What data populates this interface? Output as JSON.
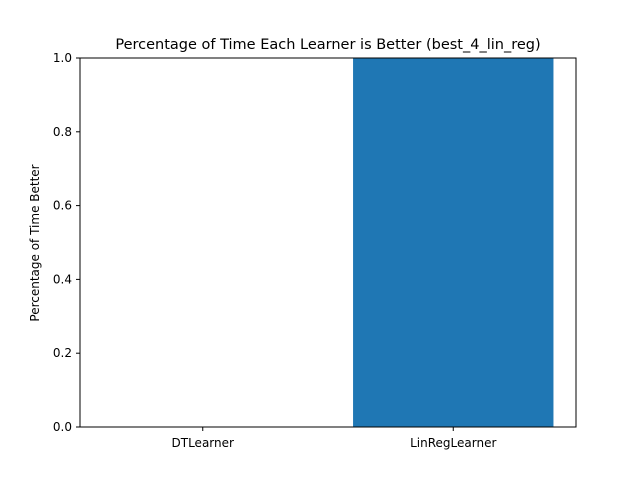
{
  "chart_data": {
    "type": "bar",
    "title": "Percentage of Time Each Learner is Better (best_4_lin_reg)",
    "xlabel": "",
    "ylabel": "Percentage of Time Better",
    "categories": [
      "DTLearner",
      "LinRegLearner"
    ],
    "values": [
      0.0,
      1.0
    ],
    "ylim": [
      0,
      1
    ],
    "yticks": [
      "0.0",
      "0.2",
      "0.4",
      "0.6",
      "0.8",
      "1.0"
    ],
    "bar_color": "#1f77b4",
    "grid": false,
    "legend": "none"
  }
}
